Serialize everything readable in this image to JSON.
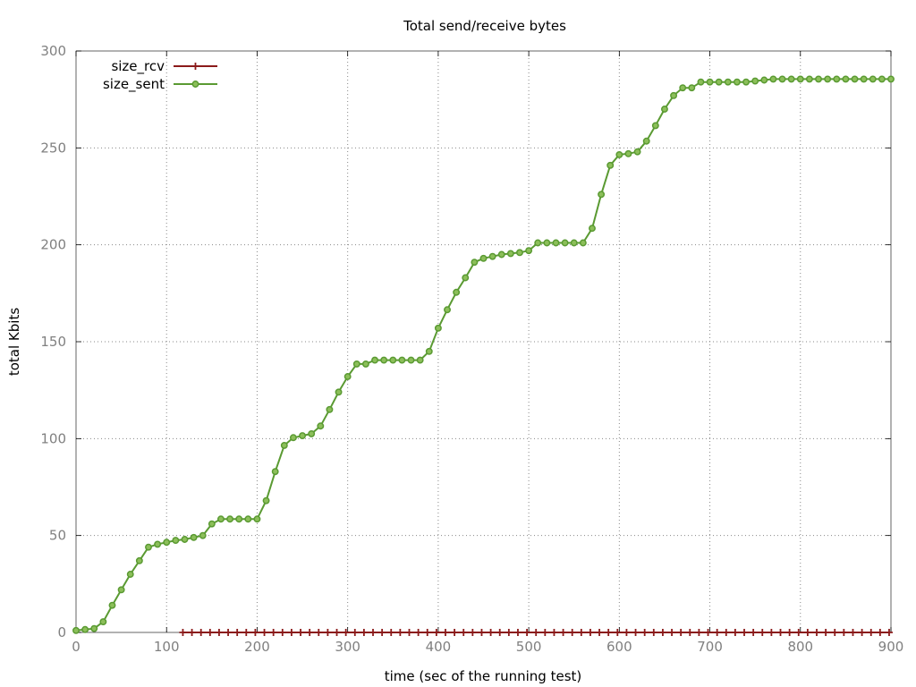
{
  "chart_data": {
    "type": "line",
    "title": "Total send/receive bytes",
    "xlabel": "time (sec of the running test)",
    "ylabel": "total Kbits",
    "xlim": [
      0,
      900
    ],
    "ylim": [
      0,
      300
    ],
    "xticks": [
      0,
      100,
      200,
      300,
      400,
      500,
      600,
      700,
      800,
      900
    ],
    "yticks": [
      0,
      50,
      100,
      150,
      200,
      250,
      300
    ],
    "grid": true,
    "legend_position": "top-left",
    "series": [
      {
        "name": "size_rcv",
        "color": "#8b1a1a",
        "marker": "plus",
        "x": [
          118,
          128,
          138,
          148,
          158,
          168,
          178,
          188,
          198,
          208,
          218,
          228,
          238,
          248,
          258,
          268,
          278,
          288,
          298,
          308,
          318,
          328,
          338,
          348,
          358,
          368,
          378,
          388,
          398,
          408,
          418,
          428,
          438,
          448,
          458,
          468,
          478,
          488,
          498,
          508,
          518,
          528,
          538,
          548,
          558,
          568,
          578,
          588,
          598,
          608,
          618,
          628,
          638,
          648,
          658,
          668,
          678,
          688,
          698,
          708,
          718,
          728,
          738,
          748,
          758,
          768,
          778,
          788,
          798,
          808,
          818,
          828,
          838,
          848,
          858,
          868,
          878,
          888,
          898
        ],
        "y": [
          0,
          0,
          0,
          0,
          0,
          0,
          0,
          0,
          0,
          0,
          0,
          0,
          0,
          0,
          0,
          0,
          0,
          0,
          0,
          0,
          0,
          0,
          0,
          0,
          0,
          0,
          0,
          0,
          0,
          0,
          0,
          0,
          0,
          0,
          0,
          0,
          0,
          0,
          0,
          0,
          0,
          0,
          0,
          0,
          0,
          0,
          0,
          0,
          0,
          0,
          0,
          0,
          0,
          0,
          0,
          0,
          0,
          0,
          0,
          0,
          0,
          0,
          0,
          0,
          0,
          0,
          0,
          0,
          0,
          0,
          0,
          0,
          0,
          0,
          0,
          0,
          0,
          0,
          0
        ]
      },
      {
        "name": "size_sent",
        "color": "#5a9a32",
        "marker": "circle",
        "x": [
          0,
          10,
          20,
          30,
          40,
          50,
          60,
          70,
          80,
          90,
          100,
          110,
          120,
          130,
          140,
          150,
          160,
          170,
          180,
          190,
          200,
          210,
          220,
          230,
          240,
          250,
          260,
          270,
          280,
          290,
          300,
          310,
          320,
          330,
          340,
          350,
          360,
          370,
          380,
          390,
          400,
          410,
          420,
          430,
          440,
          450,
          460,
          470,
          480,
          490,
          500,
          510,
          520,
          530,
          540,
          550,
          560,
          570,
          580,
          590,
          600,
          610,
          620,
          630,
          640,
          650,
          660,
          670,
          680,
          690,
          700,
          710,
          720,
          730,
          740,
          750,
          760,
          770,
          780,
          790,
          800,
          810,
          820,
          830,
          840,
          850,
          860,
          870,
          880,
          890,
          900
        ],
        "y": [
          1,
          1.5,
          2,
          5.5,
          14,
          22,
          30,
          37,
          44,
          45.5,
          46.5,
          47.5,
          48,
          49,
          50,
          56,
          58.5,
          58.5,
          58.5,
          58.5,
          58.5,
          68,
          83,
          96.5,
          100.5,
          101.5,
          102.5,
          106.5,
          115,
          124,
          132,
          138.5,
          138.5,
          140.5,
          140.5,
          140.5,
          140.5,
          140.5,
          140.5,
          145,
          157,
          166.5,
          175.5,
          183,
          191,
          193,
          194,
          195,
          195.5,
          196,
          197,
          201,
          201,
          201,
          201,
          201,
          201,
          208.5,
          226,
          241,
          246.5,
          247,
          248,
          253.5,
          261.5,
          270,
          277,
          281,
          281,
          284,
          284,
          284,
          284,
          284,
          284,
          284.5,
          285,
          285.5,
          285.5,
          285.5,
          285.5,
          285.5,
          285.5,
          285.5,
          285.5,
          285.5,
          285.5,
          285.5,
          285.5,
          285.5,
          285.5
        ]
      }
    ]
  }
}
